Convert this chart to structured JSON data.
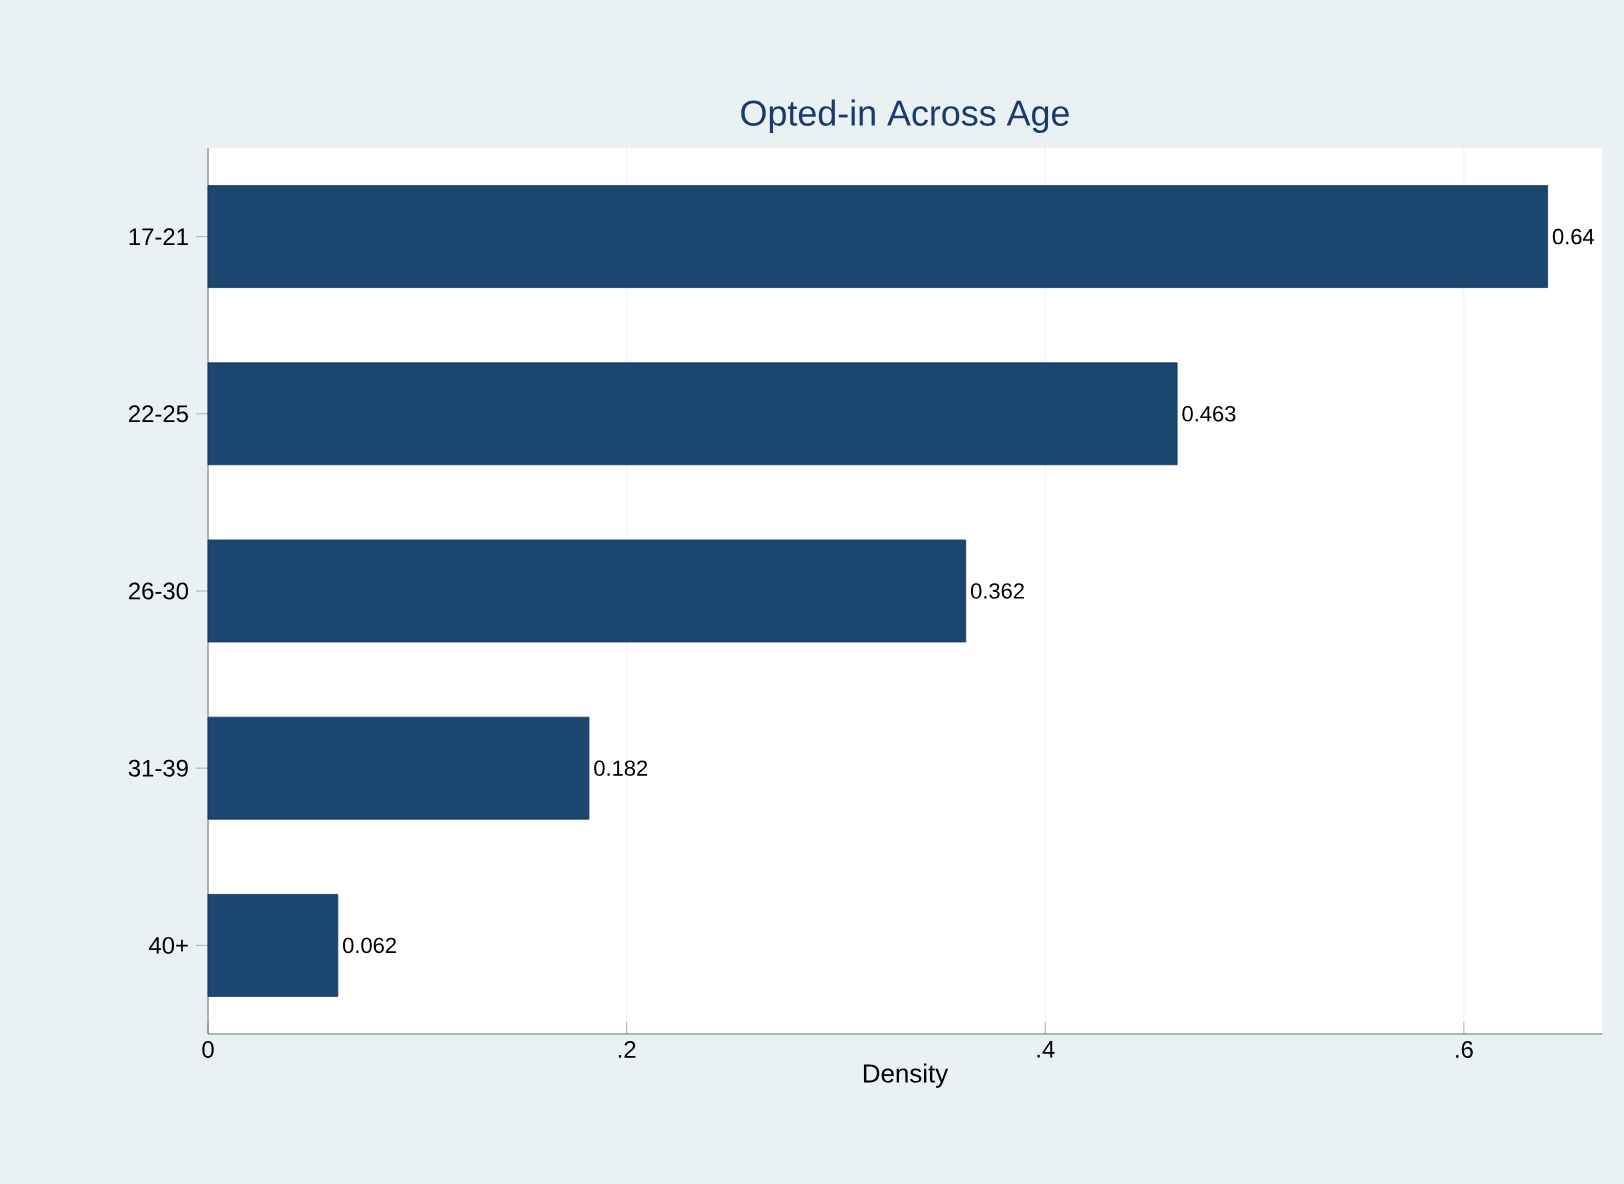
{
  "chart_data": {
    "type": "bar",
    "orientation": "horizontal",
    "title": "Opted-in Across Age",
    "xlabel": "Density",
    "categories": [
      "17-21",
      "22-25",
      "26-30",
      "31-39",
      "40+"
    ],
    "values": [
      0.64,
      0.463,
      0.362,
      0.182,
      0.062
    ],
    "color": "#1b4670",
    "data_labels": true,
    "grid": "x",
    "xlim": [
      0,
      0.666
    ],
    "xticks": [
      0,
      {
        "value": 0.2,
        "label": ".2"
      },
      {
        "value": 0.4,
        "label": ".4"
      },
      {
        "value": 0.6,
        "label": ".6"
      }
    ]
  }
}
